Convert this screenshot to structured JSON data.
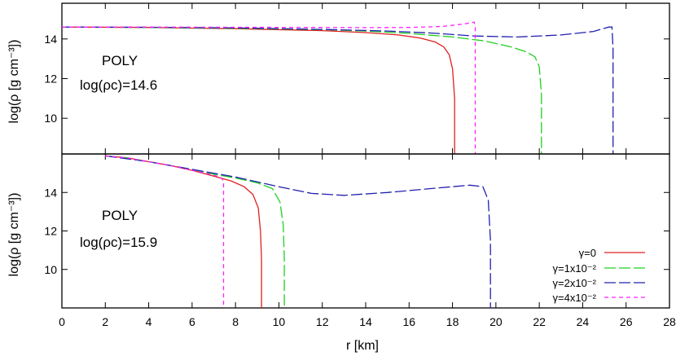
{
  "chart_data": [
    {
      "type": "line",
      "ylabel": "log(ρ [g cm⁻³])",
      "annotations": [
        "POLY",
        "log(ρc)=14.6"
      ],
      "xlim": [
        0,
        28
      ],
      "ylim": [
        8.2,
        15.8
      ],
      "yticks": [
        10,
        12,
        14
      ],
      "series": [
        {
          "name": "γ=0",
          "color": "#e02020",
          "dash": "solid",
          "x": [
            0,
            4,
            8,
            12,
            14,
            15.5,
            16.5,
            17.2,
            17.6,
            17.85,
            18.0,
            18.1,
            18.1
          ],
          "y": [
            14.6,
            14.58,
            14.52,
            14.42,
            14.32,
            14.2,
            14.05,
            13.85,
            13.6,
            13.2,
            12.5,
            11.0,
            8.2
          ]
        },
        {
          "name": "γ=1x10⁻²",
          "color": "#20d020",
          "dash": "long",
          "x": [
            0,
            4,
            8,
            12,
            14,
            16,
            18,
            19.5,
            20.7,
            21.4,
            21.8,
            22.0,
            22.1,
            22.1
          ],
          "y": [
            14.6,
            14.58,
            14.54,
            14.47,
            14.4,
            14.28,
            14.1,
            13.9,
            13.6,
            13.35,
            13.1,
            12.6,
            11.2,
            8.2
          ]
        },
        {
          "name": "γ=2x10⁻²",
          "color": "#2020b0",
          "dash": "long",
          "x": [
            0,
            4,
            8,
            12,
            15,
            17,
            19,
            21,
            23,
            24.5,
            25.2,
            25.35,
            25.4,
            25.4
          ],
          "y": [
            14.6,
            14.59,
            14.56,
            14.48,
            14.4,
            14.3,
            14.15,
            14.1,
            14.2,
            14.38,
            14.6,
            14.6,
            13.5,
            8.2
          ]
        },
        {
          "name": "γ=4x10⁻²",
          "color": "#ff20ff",
          "dash": "short",
          "x": [
            0,
            4,
            8,
            12,
            14,
            16,
            17.5,
            18.5,
            19.0,
            19.05,
            19.05
          ],
          "y": [
            14.6,
            14.6,
            14.59,
            14.58,
            14.57,
            14.58,
            14.63,
            14.75,
            14.85,
            14.6,
            8.2
          ]
        }
      ]
    },
    {
      "type": "line",
      "xlabel": "r [km]",
      "ylabel": "log(ρ [g cm⁻³])",
      "annotations": [
        "POLY",
        "log(ρc)=15.9"
      ],
      "xlim": [
        0,
        28
      ],
      "ylim": [
        8.0,
        16.0
      ],
      "xticks": [
        0,
        2,
        4,
        6,
        8,
        10,
        12,
        14,
        16,
        18,
        20,
        22,
        24,
        26,
        28
      ],
      "yticks": [
        10,
        12,
        14
      ],
      "series": [
        {
          "name": "γ=0",
          "color": "#e02020",
          "dash": "solid",
          "x": [
            2,
            3,
            4,
            5,
            6,
            7,
            7.8,
            8.4,
            8.8,
            9.05,
            9.15,
            9.2,
            9.2
          ],
          "y": [
            15.9,
            15.8,
            15.6,
            15.4,
            15.15,
            14.85,
            14.6,
            14.3,
            13.9,
            13.2,
            12.0,
            10.5,
            8.0
          ]
        },
        {
          "name": "γ=1x10⁻²",
          "color": "#20d020",
          "dash": "long",
          "x": [
            2,
            3,
            4,
            5,
            6,
            7,
            8,
            9,
            9.7,
            10.05,
            10.2,
            10.25,
            10.25
          ],
          "y": [
            15.9,
            15.8,
            15.6,
            15.4,
            15.2,
            14.95,
            14.75,
            14.5,
            14.2,
            13.5,
            12.3,
            10.5,
            8.0
          ]
        },
        {
          "name": "γ=2x10⁻²",
          "color": "#2020b0",
          "dash": "long",
          "x": [
            2,
            4,
            6,
            8,
            10,
            11.5,
            13,
            15,
            17,
            18.8,
            19.4,
            19.65,
            19.75,
            19.75
          ],
          "y": [
            15.9,
            15.6,
            15.2,
            14.8,
            14.3,
            13.95,
            13.85,
            14.0,
            14.2,
            14.38,
            14.3,
            13.6,
            11.5,
            8.0
          ]
        },
        {
          "name": "γ=4x10⁻²",
          "color": "#ff20ff",
          "dash": "short",
          "x": [
            2,
            3,
            4,
            5,
            6,
            6.8,
            7.3,
            7.45,
            7.45
          ],
          "y": [
            15.9,
            15.8,
            15.6,
            15.4,
            15.15,
            14.95,
            14.8,
            14.6,
            8.0
          ]
        }
      ]
    }
  ],
  "legend": {
    "entries": [
      "γ=0",
      "γ=1x10⁻²",
      "γ=2x10⁻²",
      "γ=4x10⁻²"
    ],
    "placement": "bottom-right"
  }
}
